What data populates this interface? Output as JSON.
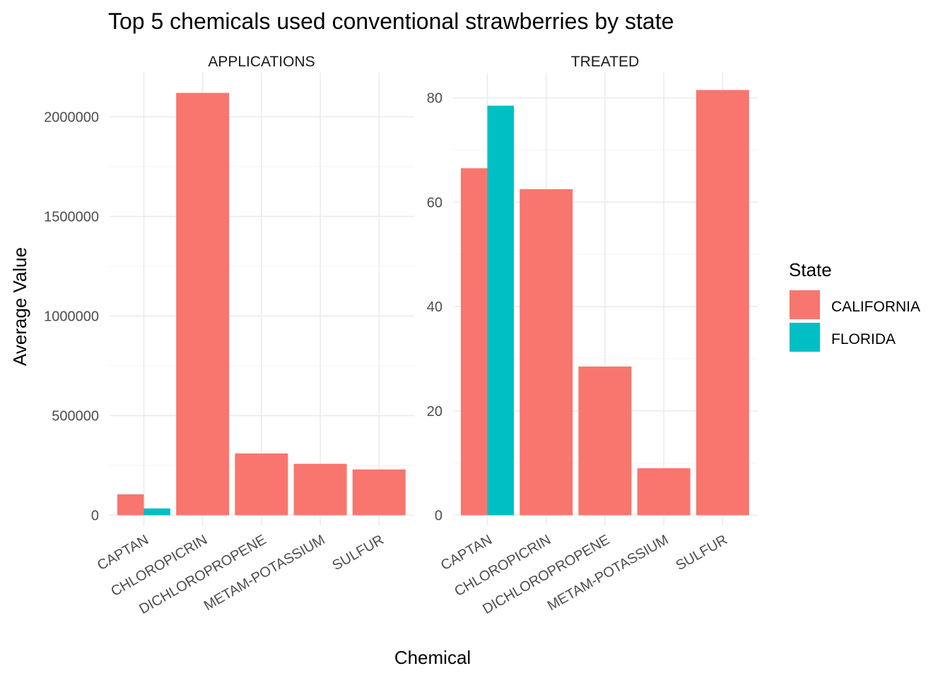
{
  "chart_data": {
    "type": "bar",
    "title": "Top 5 chemicals used  conventional strawberries by state",
    "xlabel": "Chemical",
    "ylabel": "Average Value",
    "categories": [
      "CAPTAN",
      "CHLOROPICRIN",
      "DICHLOROPROPENE",
      "METAM-POTASSIUM",
      "SULFUR"
    ],
    "legend": {
      "title": "State",
      "position": "right",
      "entries": [
        {
          "name": "CALIFORNIA",
          "color": "#F8766D"
        },
        {
          "name": "FLORIDA",
          "color": "#00BFC4"
        }
      ]
    },
    "grid": true,
    "panels": [
      {
        "label": "APPLICATIONS",
        "ylim": [
          0,
          2200000
        ],
        "ticks": [
          0,
          500000,
          1000000,
          1500000,
          2000000
        ],
        "tick_labels": [
          "0",
          "500000",
          "1000000",
          "1500000",
          "2000000"
        ],
        "series": [
          {
            "name": "CALIFORNIA",
            "values": [
              105000,
              2120000,
              310000,
              258000,
              230000
            ]
          },
          {
            "name": "FLORIDA",
            "values": [
              34000,
              null,
              null,
              null,
              null
            ]
          }
        ]
      },
      {
        "label": "TREATED",
        "ylim": [
          0,
          84
        ],
        "ticks": [
          0,
          20,
          40,
          60,
          80
        ],
        "tick_labels": [
          "0",
          "20",
          "40",
          "60",
          "80"
        ],
        "series": [
          {
            "name": "CALIFORNIA",
            "values": [
              66.5,
              62.5,
              28.5,
              9,
              81.5
            ]
          },
          {
            "name": "FLORIDA",
            "values": [
              78.5,
              null,
              null,
              null,
              null
            ]
          }
        ]
      }
    ]
  }
}
